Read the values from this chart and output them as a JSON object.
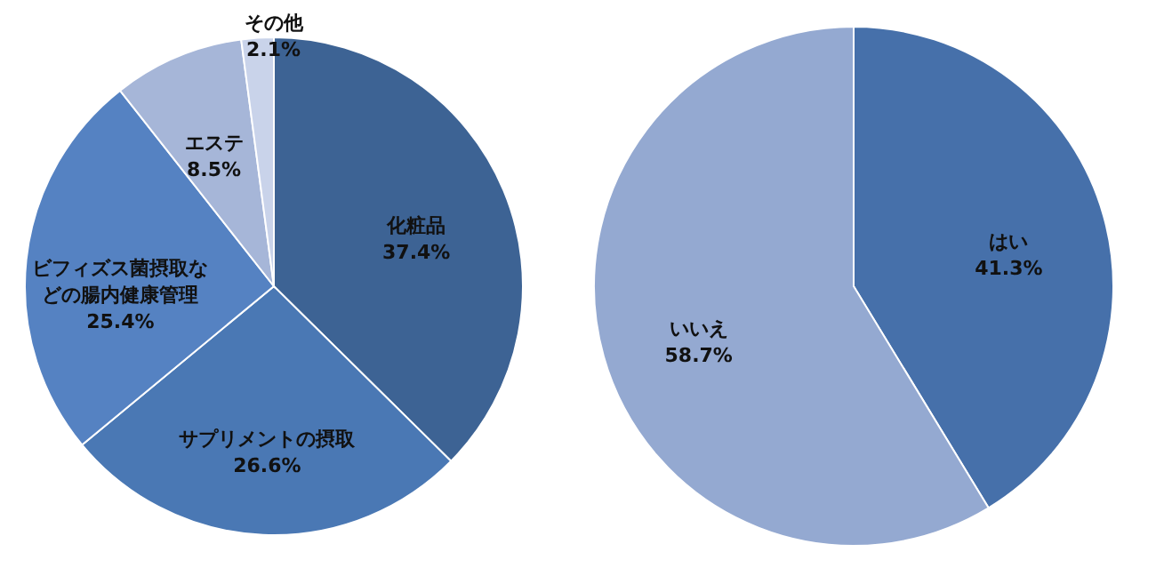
{
  "chart_data": [
    {
      "type": "pie",
      "categories": [
        "化粧品",
        "サプリメントの摂取",
        "ビフィズス菌摂取などの腸内健康管理",
        "エステ",
        "その他"
      ],
      "values": [
        37.4,
        26.6,
        25.4,
        8.5,
        2.1
      ],
      "value_labels": [
        "37.4%",
        "26.6%",
        "25.4%",
        "8.5%",
        "2.1%"
      ],
      "colors": [
        "#3d6394",
        "#4a78b4",
        "#5582c2",
        "#a6b6d8",
        "#c9d3ea"
      ],
      "legend": false
    },
    {
      "type": "pie",
      "categories": [
        "はい",
        "いいえ"
      ],
      "values": [
        41.3,
        58.7
      ],
      "value_labels": [
        "41.3%",
        "58.7%"
      ],
      "colors": [
        "#4670aa",
        "#94a9d1"
      ],
      "legend": false
    }
  ]
}
